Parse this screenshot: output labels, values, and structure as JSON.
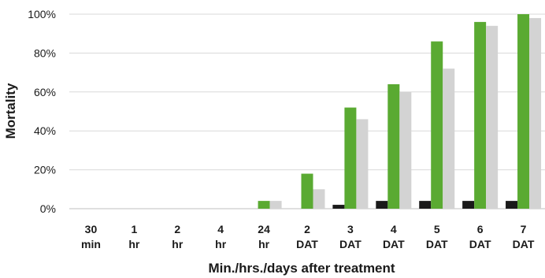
{
  "chart_data": {
    "type": "bar",
    "title": "",
    "ylabel": "Mortality",
    "xlabel": "Min./hrs./days after treatment",
    "ylim": [
      0,
      100
    ],
    "yticks": [
      "0%",
      "20%",
      "40%",
      "60%",
      "80%",
      "100%"
    ],
    "categories": [
      [
        "30",
        "min"
      ],
      [
        "1",
        "hr"
      ],
      [
        "2",
        "hr"
      ],
      [
        "4",
        "hr"
      ],
      [
        "24",
        "hr"
      ],
      [
        "2",
        "DAT"
      ],
      [
        "3",
        "DAT"
      ],
      [
        "4",
        "DAT"
      ],
      [
        "5",
        "DAT"
      ],
      [
        "6",
        "DAT"
      ],
      [
        "7",
        "DAT"
      ]
    ],
    "series": [
      {
        "color": "#1a1a1a",
        "values": [
          0,
          0,
          0,
          0,
          0,
          0,
          2,
          4,
          4,
          4,
          4
        ]
      },
      {
        "color": "#5aaa32",
        "values": [
          0,
          0,
          0,
          0,
          4,
          18,
          52,
          64,
          86,
          96,
          100
        ]
      },
      {
        "color": "#d3d3d3",
        "values": [
          0,
          0,
          0,
          0,
          4,
          10,
          46,
          60,
          72,
          94,
          98
        ]
      }
    ],
    "grid": true,
    "legend": "none"
  }
}
